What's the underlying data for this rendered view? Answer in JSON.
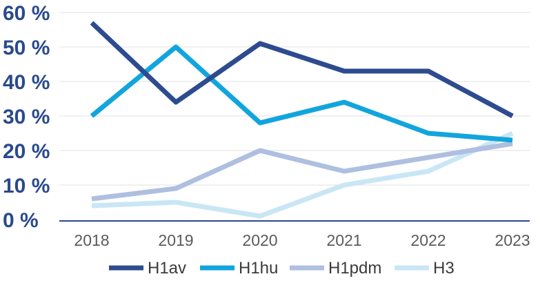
{
  "chart_data": {
    "type": "line",
    "x": [
      "2018",
      "2019",
      "2020",
      "2021",
      "2022",
      "2023"
    ],
    "y_ticks": [
      "0 %",
      "10 %",
      "20 %",
      "30 %",
      "40 %",
      "50 %",
      "60 %"
    ],
    "ylim": [
      0,
      60
    ],
    "grid": true,
    "legend_position": "bottom",
    "series": [
      {
        "name": "H1av",
        "color": "#2d4b8f",
        "values": [
          57,
          34,
          51,
          43,
          43,
          30
        ]
      },
      {
        "name": "H1hu",
        "color": "#12a5dd",
        "values": [
          30,
          50,
          28,
          34,
          25,
          23
        ]
      },
      {
        "name": "H1pdm",
        "color": "#aebfe0",
        "values": [
          6,
          9,
          20,
          14,
          18,
          22
        ]
      },
      {
        "name": "H3",
        "color": "#c9e6f5",
        "values": [
          4,
          5,
          1,
          10,
          14,
          25
        ]
      }
    ]
  }
}
